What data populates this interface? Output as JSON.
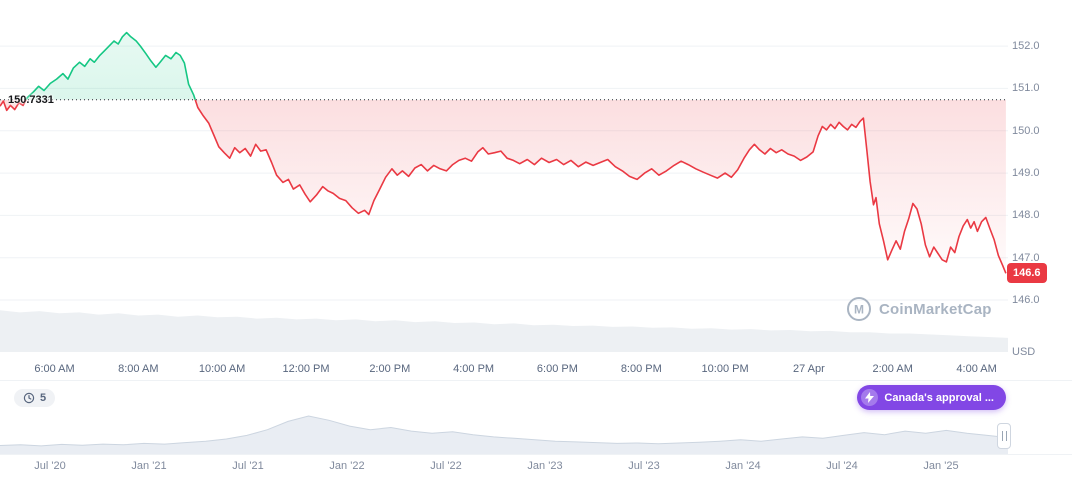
{
  "ui": {
    "watermark": {
      "text": "CoinMarketCap",
      "logo_letter": "M"
    },
    "history_badge": {
      "count": "5"
    },
    "annotation_badge": {
      "label": "Canada's approval ...",
      "color": "#8247e5"
    }
  },
  "chart_data": [
    {
      "type": "line",
      "name": "intraday-price",
      "title": "",
      "y_unit": "USD",
      "t_range": [
        4.7,
        28.75
      ],
      "ylim": [
        144.7,
        153.09
      ],
      "baseline": {
        "value": 150.7331,
        "label": "150.7331"
      },
      "last": {
        "value": 146.63,
        "label": "146.6"
      },
      "colors": {
        "up": "#16c784",
        "down": "#ea3943",
        "baseline": "#222531",
        "grid": "#eff2f5",
        "volume": "#edf0f3",
        "axis_text": "#808a9d"
      },
      "y_ticks": [
        {
          "label": "152.0",
          "value": 152.0
        },
        {
          "label": "151.0",
          "value": 151.0
        },
        {
          "label": "150.0",
          "value": 150.0
        },
        {
          "label": "149.0",
          "value": 149.0
        },
        {
          "label": "148.0",
          "value": 148.0
        },
        {
          "label": "147.0",
          "value": 147.0
        },
        {
          "label": "146.0",
          "value": 146.0
        }
      ],
      "x_ticks": [
        {
          "label": "6:00 AM",
          "t": 6
        },
        {
          "label": "8:00 AM",
          "t": 8
        },
        {
          "label": "10:00 AM",
          "t": 10
        },
        {
          "label": "12:00 PM",
          "t": 12
        },
        {
          "label": "2:00 PM",
          "t": 14
        },
        {
          "label": "4:00 PM",
          "t": 16
        },
        {
          "label": "6:00 PM",
          "t": 18
        },
        {
          "label": "8:00 PM",
          "t": 20
        },
        {
          "label": "10:00 PM",
          "t": 22
        },
        {
          "label": "27 Apr",
          "t": 24
        },
        {
          "label": "2:00 AM",
          "t": 26
        },
        {
          "label": "4:00 AM",
          "t": 28
        }
      ],
      "points": [
        [
          4.7,
          150.58
        ],
        [
          4.78,
          150.7
        ],
        [
          4.86,
          150.48
        ],
        [
          4.95,
          150.6
        ],
        [
          5.05,
          150.5
        ],
        [
          5.15,
          150.66
        ],
        [
          5.25,
          150.6
        ],
        [
          5.35,
          150.78
        ],
        [
          5.5,
          150.92
        ],
        [
          5.62,
          151.05
        ],
        [
          5.75,
          150.95
        ],
        [
          5.9,
          151.12
        ],
        [
          6.05,
          151.22
        ],
        [
          6.2,
          151.35
        ],
        [
          6.32,
          151.22
        ],
        [
          6.45,
          151.48
        ],
        [
          6.6,
          151.62
        ],
        [
          6.72,
          151.52
        ],
        [
          6.85,
          151.7
        ],
        [
          6.95,
          151.62
        ],
        [
          7.08,
          151.78
        ],
        [
          7.2,
          151.9
        ],
        [
          7.32,
          152.02
        ],
        [
          7.42,
          152.12
        ],
        [
          7.52,
          152.05
        ],
        [
          7.62,
          152.22
        ],
        [
          7.72,
          152.32
        ],
        [
          7.82,
          152.22
        ],
        [
          7.95,
          152.12
        ],
        [
          8.05,
          152.0
        ],
        [
          8.18,
          151.82
        ],
        [
          8.3,
          151.65
        ],
        [
          8.42,
          151.5
        ],
        [
          8.52,
          151.62
        ],
        [
          8.65,
          151.78
        ],
        [
          8.78,
          151.7
        ],
        [
          8.9,
          151.85
        ],
        [
          9.0,
          151.78
        ],
        [
          9.1,
          151.6
        ],
        [
          9.2,
          151.1
        ],
        [
          9.32,
          150.85
        ],
        [
          9.42,
          150.55
        ],
        [
          9.55,
          150.35
        ],
        [
          9.68,
          150.18
        ],
        [
          9.8,
          149.9
        ],
        [
          9.92,
          149.62
        ],
        [
          10.05,
          149.48
        ],
        [
          10.18,
          149.35
        ],
        [
          10.3,
          149.6
        ],
        [
          10.42,
          149.48
        ],
        [
          10.55,
          149.58
        ],
        [
          10.68,
          149.4
        ],
        [
          10.8,
          149.68
        ],
        [
          10.92,
          149.52
        ],
        [
          11.05,
          149.55
        ],
        [
          11.18,
          149.25
        ],
        [
          11.3,
          148.95
        ],
        [
          11.45,
          148.78
        ],
        [
          11.58,
          148.85
        ],
        [
          11.7,
          148.62
        ],
        [
          11.85,
          148.72
        ],
        [
          11.98,
          148.5
        ],
        [
          12.1,
          148.32
        ],
        [
          12.25,
          148.48
        ],
        [
          12.4,
          148.68
        ],
        [
          12.52,
          148.58
        ],
        [
          12.65,
          148.52
        ],
        [
          12.8,
          148.4
        ],
        [
          12.95,
          148.35
        ],
        [
          13.1,
          148.18
        ],
        [
          13.25,
          148.05
        ],
        [
          13.4,
          148.12
        ],
        [
          13.5,
          148.02
        ],
        [
          13.62,
          148.35
        ],
        [
          13.75,
          148.6
        ],
        [
          13.9,
          148.9
        ],
        [
          14.05,
          149.1
        ],
        [
          14.18,
          148.95
        ],
        [
          14.3,
          149.05
        ],
        [
          14.45,
          148.92
        ],
        [
          14.6,
          149.12
        ],
        [
          14.75,
          149.2
        ],
        [
          14.9,
          149.05
        ],
        [
          15.05,
          149.18
        ],
        [
          15.2,
          149.1
        ],
        [
          15.35,
          149.05
        ],
        [
          15.5,
          149.2
        ],
        [
          15.65,
          149.3
        ],
        [
          15.8,
          149.35
        ],
        [
          15.95,
          149.28
        ],
        [
          16.1,
          149.5
        ],
        [
          16.22,
          149.6
        ],
        [
          16.35,
          149.45
        ],
        [
          16.5,
          149.48
        ],
        [
          16.65,
          149.52
        ],
        [
          16.8,
          149.35
        ],
        [
          16.95,
          149.3
        ],
        [
          17.1,
          149.22
        ],
        [
          17.28,
          149.32
        ],
        [
          17.45,
          149.2
        ],
        [
          17.62,
          149.35
        ],
        [
          17.8,
          149.25
        ],
        [
          17.98,
          149.32
        ],
        [
          18.15,
          149.2
        ],
        [
          18.32,
          149.3
        ],
        [
          18.5,
          149.15
        ],
        [
          18.68,
          149.26
        ],
        [
          18.85,
          149.18
        ],
        [
          19.02,
          149.25
        ],
        [
          19.2,
          149.32
        ],
        [
          19.38,
          149.15
        ],
        [
          19.55,
          149.05
        ],
        [
          19.72,
          148.92
        ],
        [
          19.9,
          148.85
        ],
        [
          20.08,
          149.0
        ],
        [
          20.25,
          149.1
        ],
        [
          20.42,
          148.95
        ],
        [
          20.6,
          149.05
        ],
        [
          20.78,
          149.18
        ],
        [
          20.95,
          149.28
        ],
        [
          21.12,
          149.2
        ],
        [
          21.3,
          149.1
        ],
        [
          21.48,
          149.02
        ],
        [
          21.65,
          148.95
        ],
        [
          21.82,
          148.88
        ],
        [
          22.0,
          149.0
        ],
        [
          22.15,
          148.9
        ],
        [
          22.3,
          149.08
        ],
        [
          22.45,
          149.35
        ],
        [
          22.58,
          149.55
        ],
        [
          22.7,
          149.68
        ],
        [
          22.82,
          149.55
        ],
        [
          22.95,
          149.45
        ],
        [
          23.08,
          149.58
        ],
        [
          23.22,
          149.48
        ],
        [
          23.35,
          149.55
        ],
        [
          23.5,
          149.45
        ],
        [
          23.65,
          149.4
        ],
        [
          23.8,
          149.3
        ],
        [
          23.95,
          149.38
        ],
        [
          24.1,
          149.5
        ],
        [
          24.22,
          149.88
        ],
        [
          24.32,
          150.1
        ],
        [
          24.42,
          150.02
        ],
        [
          24.52,
          150.15
        ],
        [
          24.62,
          150.05
        ],
        [
          24.72,
          150.2
        ],
        [
          24.82,
          150.1
        ],
        [
          24.92,
          150.02
        ],
        [
          25.02,
          150.15
        ],
        [
          25.12,
          150.08
        ],
        [
          25.22,
          150.22
        ],
        [
          25.3,
          150.3
        ],
        [
          25.38,
          149.55
        ],
        [
          25.46,
          148.8
        ],
        [
          25.54,
          148.25
        ],
        [
          25.6,
          148.42
        ],
        [
          25.68,
          147.8
        ],
        [
          25.78,
          147.4
        ],
        [
          25.88,
          146.95
        ],
        [
          25.98,
          147.18
        ],
        [
          26.08,
          147.4
        ],
        [
          26.18,
          147.2
        ],
        [
          26.28,
          147.62
        ],
        [
          26.38,
          147.92
        ],
        [
          26.48,
          148.28
        ],
        [
          26.58,
          148.15
        ],
        [
          26.68,
          147.8
        ],
        [
          26.78,
          147.3
        ],
        [
          26.88,
          147.02
        ],
        [
          26.98,
          147.25
        ],
        [
          27.08,
          147.1
        ],
        [
          27.18,
          146.95
        ],
        [
          27.28,
          146.9
        ],
        [
          27.38,
          147.25
        ],
        [
          27.48,
          147.12
        ],
        [
          27.58,
          147.5
        ],
        [
          27.68,
          147.75
        ],
        [
          27.78,
          147.9
        ],
        [
          27.86,
          147.7
        ],
        [
          27.94,
          147.85
        ],
        [
          28.02,
          147.62
        ],
        [
          28.12,
          147.85
        ],
        [
          28.22,
          147.95
        ],
        [
          28.32,
          147.68
        ],
        [
          28.42,
          147.42
        ],
        [
          28.52,
          147.05
        ],
        [
          28.62,
          146.82
        ],
        [
          28.7,
          146.63
        ]
      ],
      "volume": [
        0.95,
        0.9,
        0.93,
        0.88,
        0.9,
        0.85,
        0.88,
        0.83,
        0.85,
        0.8,
        0.83,
        0.79,
        0.8,
        0.76,
        0.78,
        0.74,
        0.76,
        0.72,
        0.74,
        0.7,
        0.72,
        0.68,
        0.7,
        0.66,
        0.67,
        0.63,
        0.65,
        0.61,
        0.62,
        0.59,
        0.6,
        0.57,
        0.58,
        0.55,
        0.56,
        0.53,
        0.54,
        0.51,
        0.52,
        0.49,
        0.5,
        0.47,
        0.48,
        0.45,
        0.45,
        0.42,
        0.42,
        0.4,
        0.38,
        0.36,
        0.34,
        0.32
      ]
    },
    {
      "type": "area",
      "name": "history-navigator",
      "x_ticks": [
        "Jul '20",
        "Jan '21",
        "Jul '21",
        "Jan '22",
        "Jul '22",
        "Jan '23",
        "Jul '23",
        "Jan '24",
        "Jul '24",
        "Jan '25"
      ],
      "values": [
        0.18,
        0.2,
        0.17,
        0.21,
        0.19,
        0.22,
        0.2,
        0.24,
        0.22,
        0.26,
        0.3,
        0.36,
        0.46,
        0.62,
        0.85,
        1.0,
        0.88,
        0.72,
        0.62,
        0.68,
        0.58,
        0.52,
        0.56,
        0.48,
        0.42,
        0.38,
        0.34,
        0.3,
        0.28,
        0.26,
        0.24,
        0.25,
        0.23,
        0.25,
        0.27,
        0.3,
        0.34,
        0.3,
        0.36,
        0.42,
        0.38,
        0.46,
        0.54,
        0.48,
        0.58,
        0.52,
        0.6,
        0.52,
        0.46,
        0.4
      ]
    }
  ]
}
